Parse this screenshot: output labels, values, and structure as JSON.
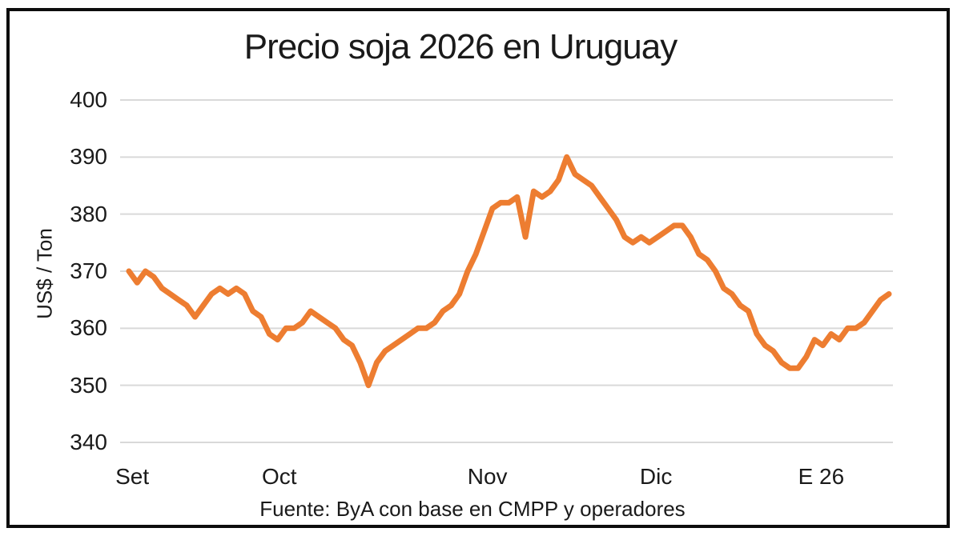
{
  "title": "Precio soja 2026 en Uruguay",
  "footer": "Fuente: ByA con base en CMPP y operadores",
  "colors": {
    "line": "#ED7D31",
    "gridline": "#D9D9D9",
    "text": "#1A1A1A",
    "frame_border": "#0D0D0D"
  },
  "chart_data": {
    "type": "line",
    "title": "Precio soja 2026 en Uruguay",
    "xlabel": "",
    "ylabel": "US$ / Ton",
    "ylim": [
      340,
      400
    ],
    "y_ticks": [
      400,
      390,
      380,
      370,
      360,
      350,
      340
    ],
    "grid": "horizontal",
    "legend": "none",
    "source": "Fuente: ByA con base en CMPP y operadores",
    "x_unit": "daily quotes, Sep 2025 - Jan 2026",
    "x_ticks": [
      {
        "label": "Set",
        "index": 0.4
      },
      {
        "label": "Oct",
        "index": 18.2
      },
      {
        "label": "Nov",
        "index": 43.4
      },
      {
        "label": "Dic",
        "index": 63.8
      },
      {
        "label": "E 26",
        "index": 83.8
      }
    ],
    "series_name": "Precio soja (US$/Ton)",
    "values": [
      370,
      368,
      370,
      369,
      367,
      366,
      365,
      364,
      362,
      364,
      366,
      367,
      366,
      367,
      366,
      363,
      362,
      359,
      358,
      360,
      360,
      361,
      363,
      362,
      361,
      360,
      358,
      357,
      354,
      350,
      354,
      356,
      357,
      358,
      359,
      360,
      360,
      361,
      363,
      364,
      366,
      370,
      373,
      377,
      381,
      382,
      382,
      383,
      376,
      384,
      383,
      384,
      386,
      390,
      387,
      386,
      385,
      383,
      381,
      379,
      376,
      375,
      376,
      375,
      376,
      377,
      378,
      378,
      376,
      373,
      372,
      370,
      367,
      366,
      364,
      363,
      359,
      357,
      356,
      354,
      353,
      353,
      355,
      358,
      357,
      359,
      358,
      360,
      360,
      361,
      363,
      365,
      366
    ]
  }
}
